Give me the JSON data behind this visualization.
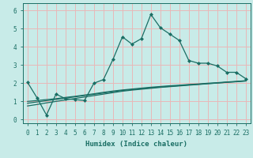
{
  "xlabel": "Humidex (Indice chaleur)",
  "ylabel": "",
  "xlim": [
    -0.5,
    23.5
  ],
  "ylim": [
    -0.2,
    6.4
  ],
  "xticks": [
    0,
    1,
    2,
    3,
    4,
    5,
    6,
    7,
    8,
    9,
    10,
    11,
    12,
    13,
    14,
    15,
    16,
    17,
    18,
    19,
    20,
    21,
    22,
    23
  ],
  "yticks": [
    0,
    1,
    2,
    3,
    4,
    5,
    6
  ],
  "bg_color": "#c8ebe8",
  "grid_color": "#e8b8b8",
  "line_color": "#1a6e64",
  "series1_x": [
    0,
    1,
    2,
    3,
    4,
    5,
    6,
    7,
    8,
    9,
    10,
    11,
    12,
    13,
    14,
    15,
    16,
    17,
    18,
    19,
    20,
    21,
    22,
    23
  ],
  "series1_y": [
    2.05,
    1.2,
    0.25,
    1.4,
    1.15,
    1.1,
    1.05,
    2.0,
    2.2,
    3.3,
    4.55,
    4.15,
    4.45,
    5.78,
    5.05,
    4.7,
    4.35,
    3.25,
    3.1,
    3.1,
    2.95,
    2.6,
    2.6,
    2.25
  ],
  "trend1_x": [
    0,
    1,
    2,
    3,
    4,
    5,
    6,
    7,
    8,
    9,
    10,
    11,
    12,
    13,
    14,
    15,
    16,
    17,
    18,
    19,
    20,
    21,
    22,
    23
  ],
  "trend1_y": [
    1.0,
    1.05,
    1.1,
    1.15,
    1.22,
    1.28,
    1.35,
    1.42,
    1.5,
    1.57,
    1.63,
    1.68,
    1.73,
    1.78,
    1.82,
    1.86,
    1.89,
    1.93,
    1.96,
    2.0,
    2.03,
    2.07,
    2.1,
    2.14
  ],
  "trend2_x": [
    0,
    1,
    2,
    3,
    4,
    5,
    6,
    7,
    8,
    9,
    10,
    11,
    12,
    13,
    14,
    15,
    16,
    17,
    18,
    19,
    20,
    21,
    22,
    23
  ],
  "trend2_y": [
    0.9,
    0.97,
    1.04,
    1.11,
    1.18,
    1.25,
    1.32,
    1.39,
    1.46,
    1.53,
    1.6,
    1.65,
    1.7,
    1.75,
    1.79,
    1.83,
    1.87,
    1.91,
    1.94,
    1.98,
    2.01,
    2.05,
    2.08,
    2.12
  ],
  "trend3_x": [
    0,
    1,
    2,
    3,
    4,
    5,
    6,
    7,
    8,
    9,
    10,
    11,
    12,
    13,
    14,
    15,
    16,
    17,
    18,
    19,
    20,
    21,
    22,
    23
  ],
  "trend3_y": [
    0.75,
    0.83,
    0.92,
    1.0,
    1.08,
    1.16,
    1.24,
    1.32,
    1.4,
    1.48,
    1.56,
    1.62,
    1.67,
    1.72,
    1.77,
    1.81,
    1.85,
    1.89,
    1.93,
    1.97,
    2.01,
    2.05,
    2.09,
    2.13
  ]
}
